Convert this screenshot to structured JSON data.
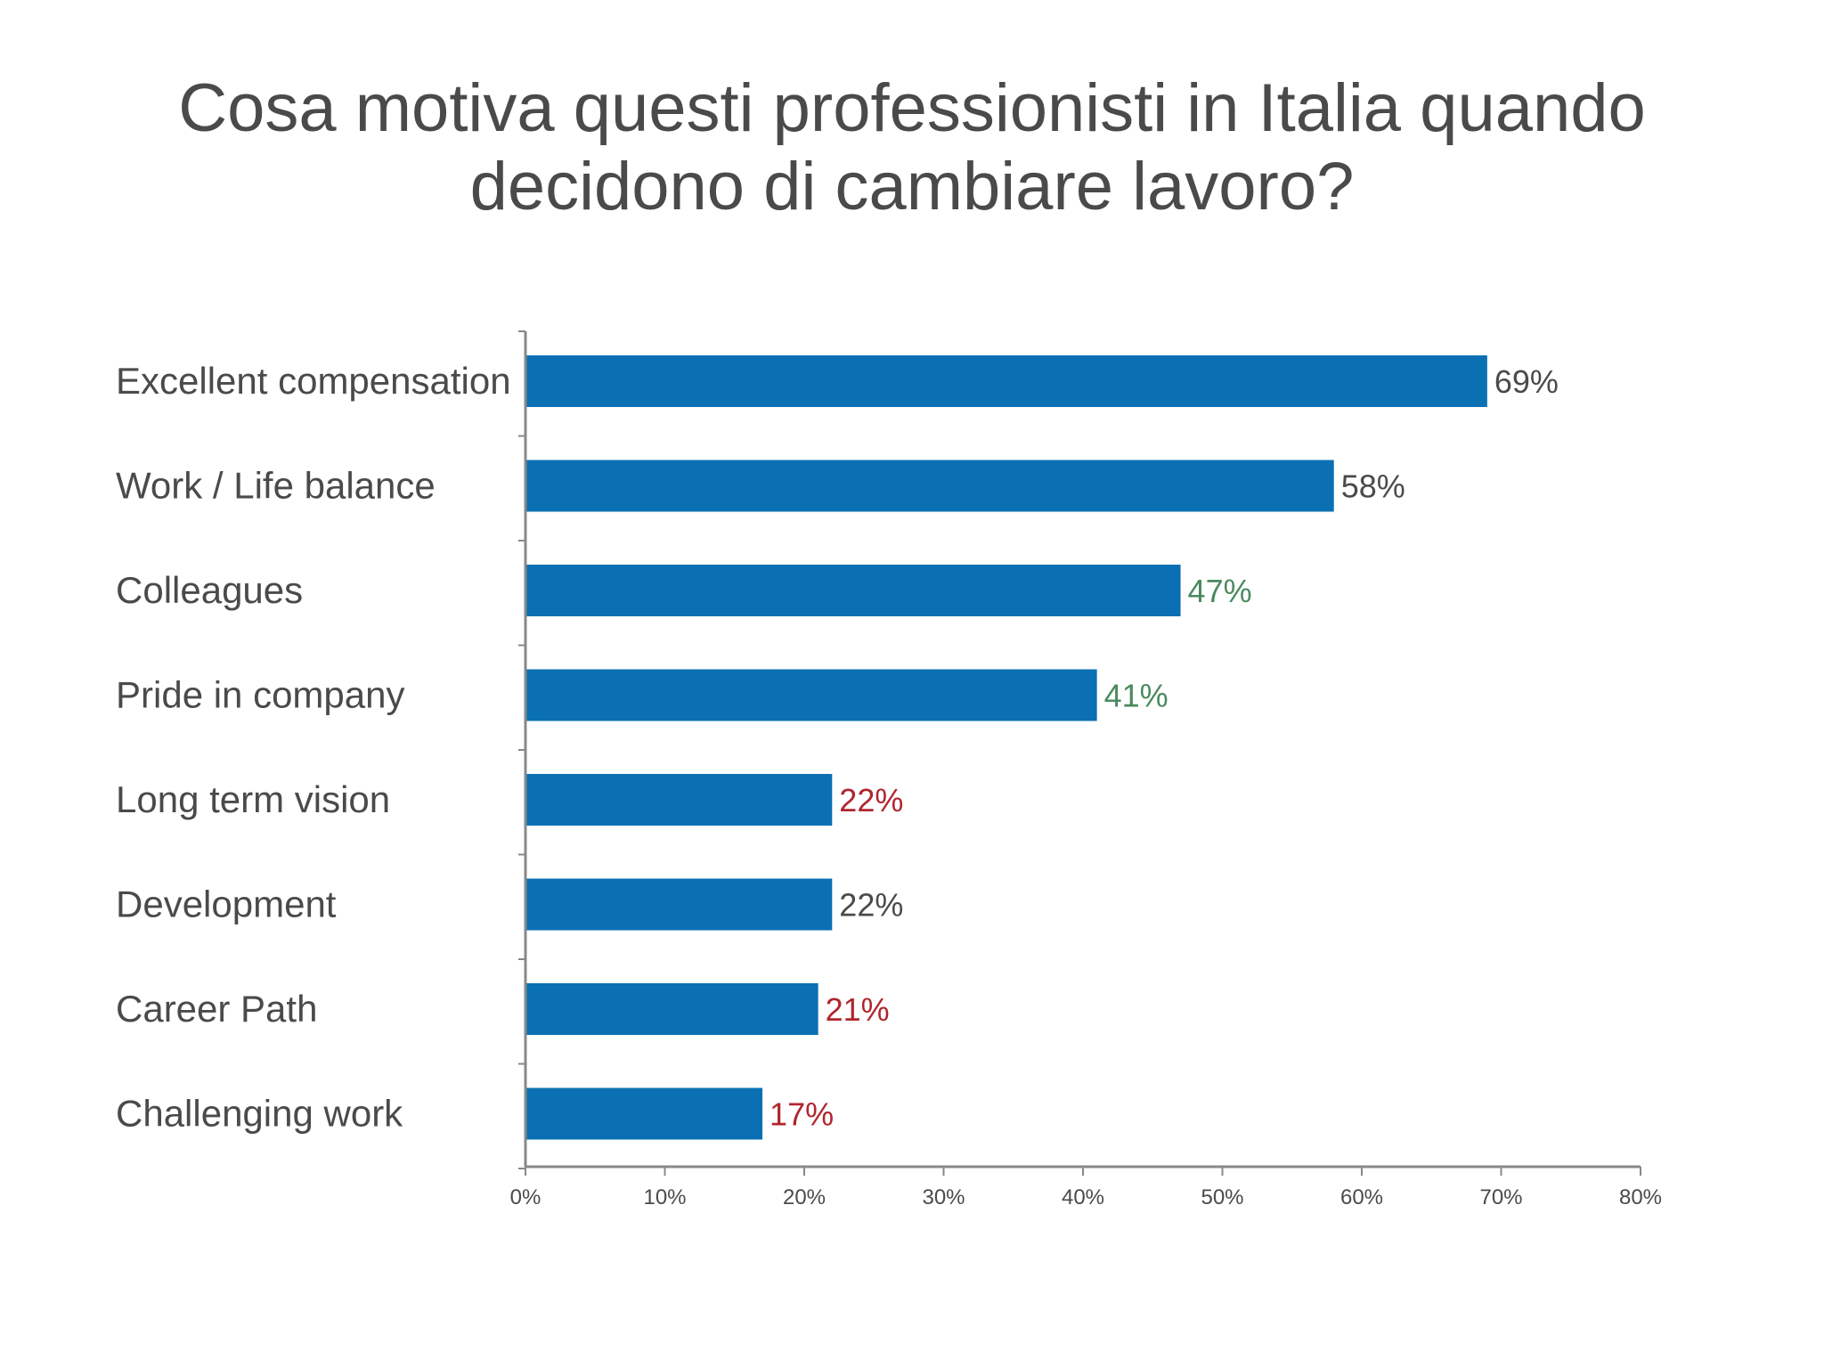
{
  "title": {
    "line1": "Cosa motiva questi professionisti in Italia quando",
    "line2": "decidono di cambiare lavoro?"
  },
  "colors": {
    "bar": "#0a70b3",
    "label_dark": "#4a4a4a",
    "label_green": "#4a8a5e",
    "label_red": "#b0262e",
    "axis": "#888888",
    "title": "#4a4a4a"
  },
  "chart_data": {
    "type": "bar",
    "orientation": "horizontal",
    "title": "",
    "xlabel": "",
    "ylabel": "",
    "xlim": [
      0,
      80
    ],
    "grid": false,
    "legend": "none",
    "categories": [
      "Excellent compensation",
      "Work / Life balance",
      "Colleagues",
      "Pride in company",
      "Long term vision",
      "Development",
      "Career Path",
      "Challenging work"
    ],
    "values": [
      69,
      58,
      47,
      41,
      22,
      22,
      21,
      17
    ],
    "data_labels": [
      "69%",
      "58%",
      "47%",
      "41%",
      "22%",
      "22%",
      "21%",
      "17%"
    ],
    "label_colors": [
      "dark",
      "dark",
      "green",
      "green",
      "red",
      "dark",
      "red",
      "red"
    ],
    "x_ticks": [
      0,
      10,
      20,
      30,
      40,
      50,
      60,
      70,
      80
    ],
    "x_tick_labels": [
      "0%",
      "10%",
      "20%",
      "30%",
      "40%",
      "50%",
      "60%",
      "70%",
      "80%"
    ]
  }
}
